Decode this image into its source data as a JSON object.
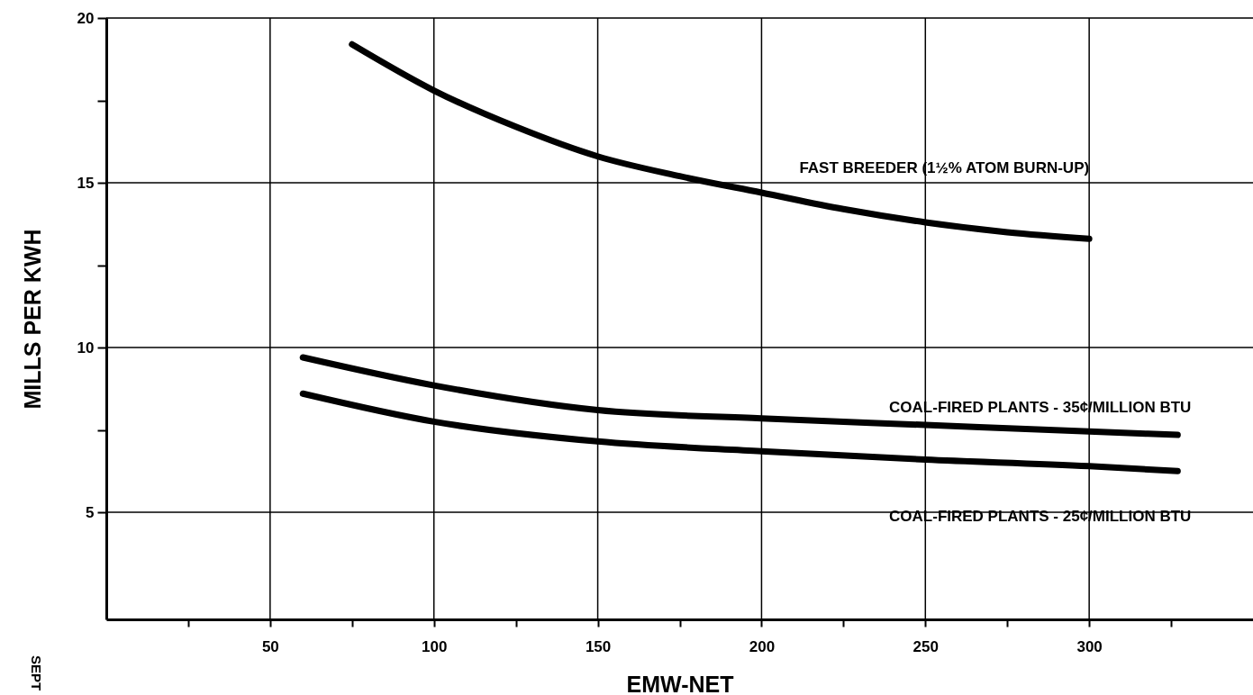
{
  "chart_data": {
    "type": "line",
    "xlabel": "EMW-NET",
    "ylabel": "MILLS PER KWH",
    "xlim": [
      0,
      350
    ],
    "ylim": [
      1.75,
      20
    ],
    "xticks": [
      {
        "value": 25,
        "label": null
      },
      50,
      {
        "value": 75,
        "label": null
      },
      100,
      {
        "value": 125,
        "label": null
      },
      150,
      {
        "value": 175,
        "label": null
      },
      200,
      {
        "value": 225,
        "label": null
      },
      250,
      {
        "value": 275,
        "label": null
      },
      300,
      {
        "value": 325,
        "label": null
      }
    ],
    "yticks": [
      5,
      {
        "value": 7.5,
        "label": null
      },
      10,
      {
        "value": 12.5,
        "label": null
      },
      15,
      {
        "value": 17.5,
        "label": null
      },
      20
    ],
    "grid": true,
    "marker": "none",
    "line_style": "solid",
    "series": [
      {
        "name": "FAST BREEDER  (1½% ATOM BURN-UP)",
        "color": "#000000",
        "x": [
          75,
          100,
          125,
          150,
          175,
          200,
          225,
          250,
          275,
          300
        ],
        "values": [
          19.2,
          17.8,
          16.7,
          15.8,
          15.2,
          14.7,
          14.2,
          13.8,
          13.5,
          13.3
        ]
      },
      {
        "name": "COAL-FIRED PLANTS  -  35¢/MILLION BTU",
        "color": "#000000",
        "x": [
          60,
          100,
          150,
          200,
          250,
          300,
          327
        ],
        "values": [
          9.7,
          8.85,
          8.1,
          7.85,
          7.65,
          7.45,
          7.35
        ]
      },
      {
        "name": "COAL-FIRED PLANTS  -  25¢/MILLION BTU",
        "color": "#000000",
        "x": [
          60,
          100,
          150,
          200,
          250,
          300,
          327
        ],
        "values": [
          8.6,
          7.75,
          7.15,
          6.85,
          6.6,
          6.4,
          6.25
        ]
      }
    ],
    "annotations": [
      "SEPT"
    ]
  }
}
